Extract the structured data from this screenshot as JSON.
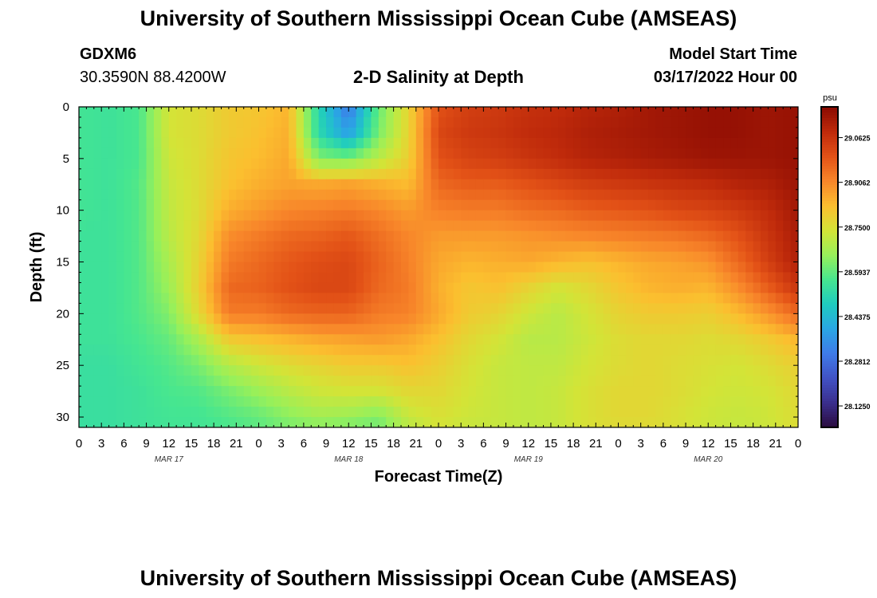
{
  "header": {
    "title": "University of Southern Mississippi Ocean Cube (AMSEAS)",
    "station_id": "GDXM6",
    "station_coords": "30.3590N  88.4200W",
    "plot_title": "2-D Salinity at Depth",
    "model_start_label": "Model Start Time",
    "model_start_value": "03/17/2022 Hour 00"
  },
  "footer": {
    "title": "University of Southern Mississippi Ocean Cube (AMSEAS)"
  },
  "chart_data": {
    "type": "heatmap",
    "title": "2-D Salinity at Depth",
    "xlabel": "Forecast Time(Z)",
    "ylabel": "Depth (ft)",
    "x_tick_labels": [
      "0",
      "3",
      "6",
      "9",
      "12",
      "15",
      "18",
      "21",
      "0",
      "3",
      "6",
      "9",
      "12",
      "15",
      "18",
      "21",
      "0",
      "3",
      "6",
      "9",
      "12",
      "15",
      "18",
      "21",
      "0",
      "3",
      "6",
      "9",
      "12",
      "15",
      "18",
      "21",
      "0"
    ],
    "day_labels": [
      {
        "label": "MAR 17",
        "hour": 12
      },
      {
        "label": "MAR 18",
        "hour": 36
      },
      {
        "label": "MAR 19",
        "hour": 60
      },
      {
        "label": "MAR 20",
        "hour": 84
      }
    ],
    "xlim_hours": [
      0,
      96
    ],
    "ylim_ft": [
      0,
      31
    ],
    "y_ticks": [
      0,
      5,
      10,
      15,
      20,
      25,
      30
    ],
    "y_tick_labels": [
      "0",
      "5",
      "10",
      "15",
      "20",
      "25",
      "30"
    ],
    "colorbar": {
      "units": "psu",
      "range": [
        28.05,
        29.17
      ],
      "tick_values": [
        29.0625,
        28.90625,
        28.75,
        28.59375,
        28.4375,
        28.28125,
        28.125
      ],
      "tick_labels": [
        "29.0625",
        "28.9062",
        "28.7500",
        "28.5937",
        "28.4375",
        "28.2812",
        "28.1250"
      ],
      "colors": [
        "#2a0b3d",
        "#3a2e8c",
        "#4152c4",
        "#3f7ae8",
        "#2aa6e4",
        "#1fcbc0",
        "#46e690",
        "#98f05a",
        "#d3e437",
        "#fbbf2f",
        "#f8862a",
        "#e35217",
        "#bf2a0b",
        "#8a0a02"
      ]
    },
    "grid": {
      "hours": [
        0,
        4,
        8,
        12,
        16,
        20,
        24,
        28,
        32,
        36,
        40,
        44,
        48,
        52,
        56,
        60,
        64,
        68,
        72,
        76,
        80,
        84,
        88,
        92,
        96
      ],
      "depths_ft": [
        0,
        2.5,
        5,
        7.5,
        10,
        12.5,
        15,
        17.5,
        20,
        22.5,
        25,
        27.5,
        30,
        31
      ],
      "salinity_psu": [
        [
          28.56,
          28.55,
          28.57,
          28.74,
          28.76,
          28.8,
          28.81,
          28.84,
          28.51,
          28.3,
          28.6,
          28.78,
          29.0,
          29.04,
          29.05,
          29.07,
          29.08,
          29.1,
          29.11,
          29.13,
          29.14,
          29.15,
          29.15,
          29.14,
          29.15
        ],
        [
          28.56,
          28.55,
          28.57,
          28.74,
          28.76,
          28.8,
          28.82,
          28.85,
          28.52,
          28.38,
          28.62,
          28.78,
          29.02,
          29.05,
          29.06,
          29.08,
          29.09,
          29.11,
          29.12,
          29.13,
          29.14,
          29.15,
          29.15,
          29.14,
          29.15
        ],
        [
          28.56,
          28.55,
          28.57,
          28.73,
          28.76,
          28.81,
          28.83,
          28.86,
          28.63,
          28.62,
          28.7,
          28.79,
          29.0,
          29.03,
          29.04,
          29.06,
          29.08,
          29.1,
          29.11,
          29.12,
          29.13,
          29.14,
          29.14,
          29.14,
          29.15
        ],
        [
          28.56,
          28.55,
          28.58,
          28.72,
          28.76,
          28.82,
          28.85,
          28.87,
          28.86,
          28.87,
          28.85,
          28.83,
          28.96,
          28.98,
          28.98,
          29.0,
          29.02,
          29.04,
          29.05,
          29.06,
          29.07,
          29.08,
          29.1,
          29.11,
          29.14
        ],
        [
          28.56,
          28.55,
          28.58,
          28.71,
          28.76,
          28.85,
          28.88,
          28.91,
          28.92,
          28.93,
          28.91,
          28.88,
          28.92,
          28.93,
          28.93,
          28.95,
          28.96,
          28.98,
          28.99,
          29.0,
          29.02,
          29.03,
          29.05,
          29.08,
          29.13
        ],
        [
          28.55,
          28.55,
          28.58,
          28.7,
          28.77,
          28.9,
          28.93,
          28.96,
          28.97,
          28.99,
          28.95,
          28.91,
          28.88,
          28.88,
          28.88,
          28.89,
          28.9,
          28.91,
          28.92,
          28.93,
          28.94,
          28.96,
          29.0,
          29.06,
          29.12
        ],
        [
          28.55,
          28.55,
          28.58,
          28.68,
          28.78,
          28.93,
          28.96,
          28.99,
          29.01,
          29.02,
          28.97,
          28.92,
          28.86,
          28.84,
          28.85,
          28.86,
          28.84,
          28.82,
          28.84,
          28.86,
          28.87,
          28.89,
          28.96,
          29.04,
          29.11
        ],
        [
          28.55,
          28.55,
          28.58,
          28.66,
          28.79,
          28.96,
          28.97,
          29.0,
          29.02,
          29.02,
          28.96,
          28.93,
          28.85,
          28.81,
          28.82,
          28.78,
          28.74,
          28.77,
          28.81,
          28.84,
          28.85,
          28.84,
          28.9,
          28.98,
          29.06
        ],
        [
          28.55,
          28.55,
          28.58,
          28.63,
          28.77,
          28.93,
          28.93,
          28.96,
          28.97,
          28.97,
          28.93,
          28.92,
          28.86,
          28.8,
          28.78,
          28.73,
          28.7,
          28.74,
          28.78,
          28.8,
          28.8,
          28.79,
          28.83,
          28.89,
          28.96
        ],
        [
          28.55,
          28.55,
          28.57,
          28.6,
          28.68,
          28.8,
          28.82,
          28.84,
          28.86,
          28.87,
          28.88,
          28.86,
          28.82,
          28.77,
          28.74,
          28.7,
          28.7,
          28.73,
          28.76,
          28.77,
          28.77,
          28.76,
          28.77,
          28.8,
          28.84
        ],
        [
          28.54,
          28.54,
          28.56,
          28.58,
          28.62,
          28.69,
          28.73,
          28.76,
          28.78,
          28.8,
          28.8,
          28.82,
          28.79,
          28.75,
          28.72,
          28.71,
          28.71,
          28.74,
          28.76,
          28.77,
          28.76,
          28.75,
          28.74,
          28.76,
          28.79
        ],
        [
          28.54,
          28.54,
          28.55,
          28.57,
          28.58,
          28.62,
          28.66,
          28.7,
          28.73,
          28.74,
          28.74,
          28.77,
          28.77,
          28.74,
          28.72,
          28.71,
          28.72,
          28.75,
          28.77,
          28.77,
          28.76,
          28.74,
          28.73,
          28.74,
          28.77
        ],
        [
          28.54,
          28.54,
          28.55,
          28.56,
          28.56,
          28.58,
          28.6,
          28.64,
          28.67,
          28.66,
          28.63,
          28.72,
          28.75,
          28.73,
          28.72,
          28.71,
          28.72,
          28.75,
          28.77,
          28.77,
          28.75,
          28.73,
          28.72,
          28.73,
          28.76
        ],
        [
          28.54,
          28.54,
          28.55,
          28.56,
          28.56,
          28.57,
          28.59,
          28.62,
          28.63,
          28.62,
          28.61,
          28.7,
          28.74,
          28.72,
          28.72,
          28.71,
          28.72,
          28.75,
          28.76,
          28.76,
          28.75,
          28.73,
          28.72,
          28.73,
          28.76
        ]
      ]
    }
  }
}
